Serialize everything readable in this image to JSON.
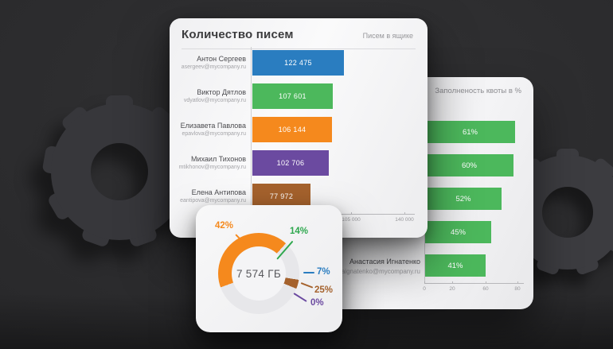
{
  "background": {
    "color": "#2a2a2c",
    "icons": [
      {
        "name": "gear-icon-left"
      },
      {
        "name": "gear-icon-right"
      }
    ]
  },
  "chart_data": [
    {
      "type": "bar",
      "orientation": "horizontal",
      "title": "Количество писем",
      "subtitle": "Писем в ящике",
      "rows": [
        {
          "name": "Антон Сергеев",
          "email": "asergeev@mycompany.ru",
          "value": 122475,
          "value_label": "122 475",
          "color": "#2A7DC0"
        },
        {
          "name": "Виктор Дятлов",
          "email": "vdyatlov@mycompany.ru",
          "value": 107601,
          "value_label": "107 601",
          "color": "#4CB85C"
        },
        {
          "name": "Елизавета Павлова",
          "email": "epavlova@mycompany.ru",
          "value": 106144,
          "value_label": "106 144",
          "color": "#F5891D"
        },
        {
          "name": "Михаил Тихонов",
          "email": "mtikhonov@mycompany.ru",
          "value": 102706,
          "value_label": "102 706",
          "color": "#6B4AA0"
        },
        {
          "name": "Елена Антипова",
          "email": "eantipova@mycompany.ru",
          "value": 77972,
          "value_label": "77 972",
          "color": "#A5622D"
        }
      ],
      "x_ticks": [
        "105 000",
        "140 000"
      ]
    },
    {
      "type": "bar",
      "orientation": "horizontal",
      "title": "Заполненость квоты в %",
      "bar_color": "#4CB85C",
      "rows": [
        {
          "value": 61,
          "label": "61%"
        },
        {
          "value": 60,
          "label": "60%"
        },
        {
          "value": 52,
          "label": "52%"
        },
        {
          "value": 45,
          "label": "45%"
        },
        {
          "value": 41,
          "label": "41%"
        }
      ],
      "visible_row": {
        "name": "Анастасия Игнатенко",
        "email": "aignatenko@mycompany.ru"
      },
      "x_ticks": [
        "0",
        "20",
        "60",
        "80"
      ],
      "xlim": [
        0,
        80
      ]
    },
    {
      "type": "donut",
      "center_label": "7 574 ГБ",
      "slices": [
        {
          "label": "42%",
          "value": 42,
          "color": "#F5891D"
        },
        {
          "label": "14%",
          "value": 14,
          "color": "#2FA84F"
        },
        {
          "label": "7%",
          "value": 7,
          "color": "#2A7DC0"
        },
        {
          "label": "25%",
          "value": 25,
          "color": "#A5622D"
        },
        {
          "label": "0%",
          "value": 0,
          "color": "#6B4AA0"
        }
      ],
      "ring_rest_color": "#e7e7ea"
    }
  ]
}
